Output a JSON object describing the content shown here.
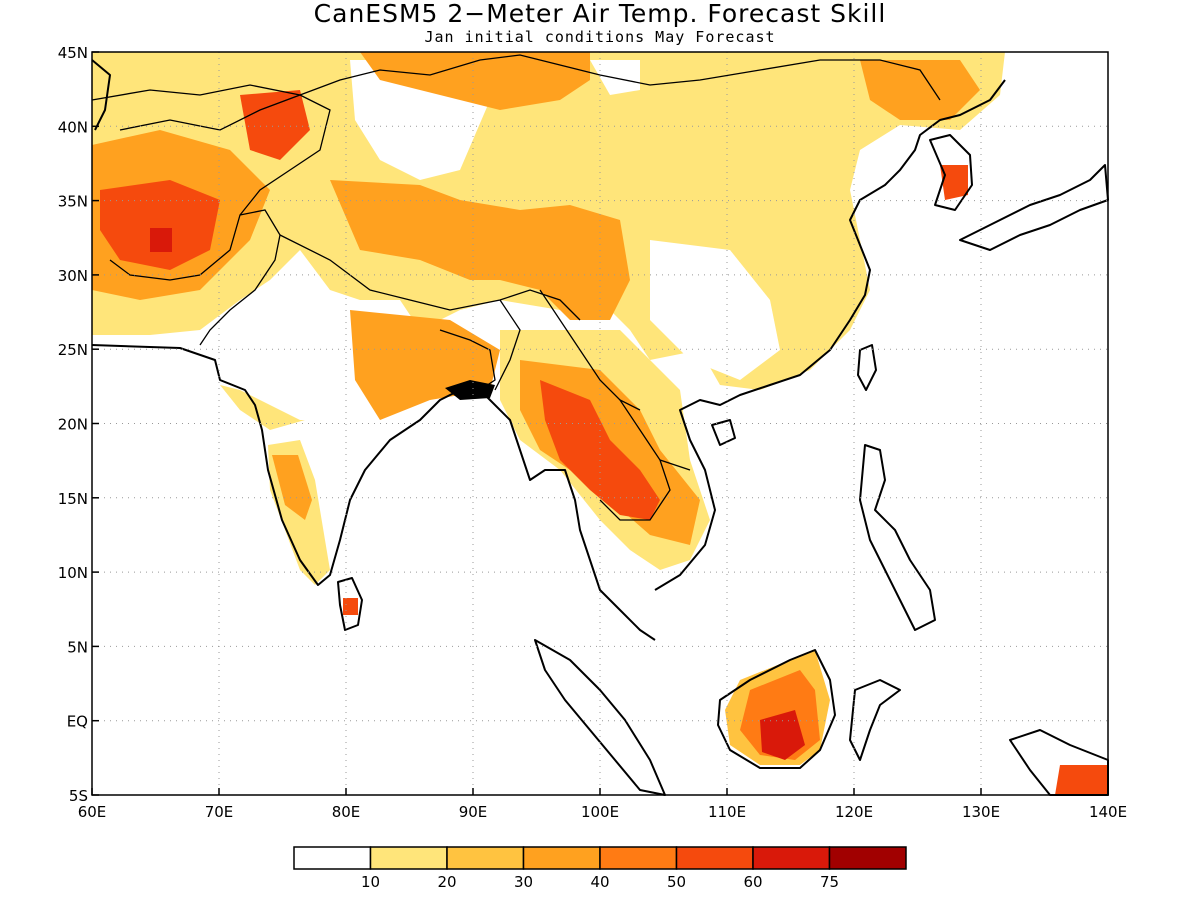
{
  "title": "CanESM5 2−Meter Air Temp. Forecast Skill",
  "subtitle": "Jan initial conditions   May Forecast",
  "map": {
    "lon_range": [
      60,
      140
    ],
    "lat_range": [
      -5,
      45
    ],
    "x_tick_labels": [
      "60E",
      "70E",
      "80E",
      "90E",
      "100E",
      "110E",
      "120E",
      "130E",
      "140E"
    ],
    "y_tick_labels": [
      "5S",
      "EQ",
      "5N",
      "10N",
      "15N",
      "20N",
      "25N",
      "30N",
      "35N",
      "40N",
      "45N"
    ],
    "grid": "dotted"
  },
  "legend": {
    "labels": [
      "10",
      "20",
      "30",
      "40",
      "50",
      "60",
      "75"
    ],
    "colors": [
      "#ffffff",
      "#ffe57a",
      "#ffc340",
      "#ffa11f",
      "#ff7b14",
      "#f54a0d",
      "#d9190a",
      "#a10000"
    ]
  }
}
